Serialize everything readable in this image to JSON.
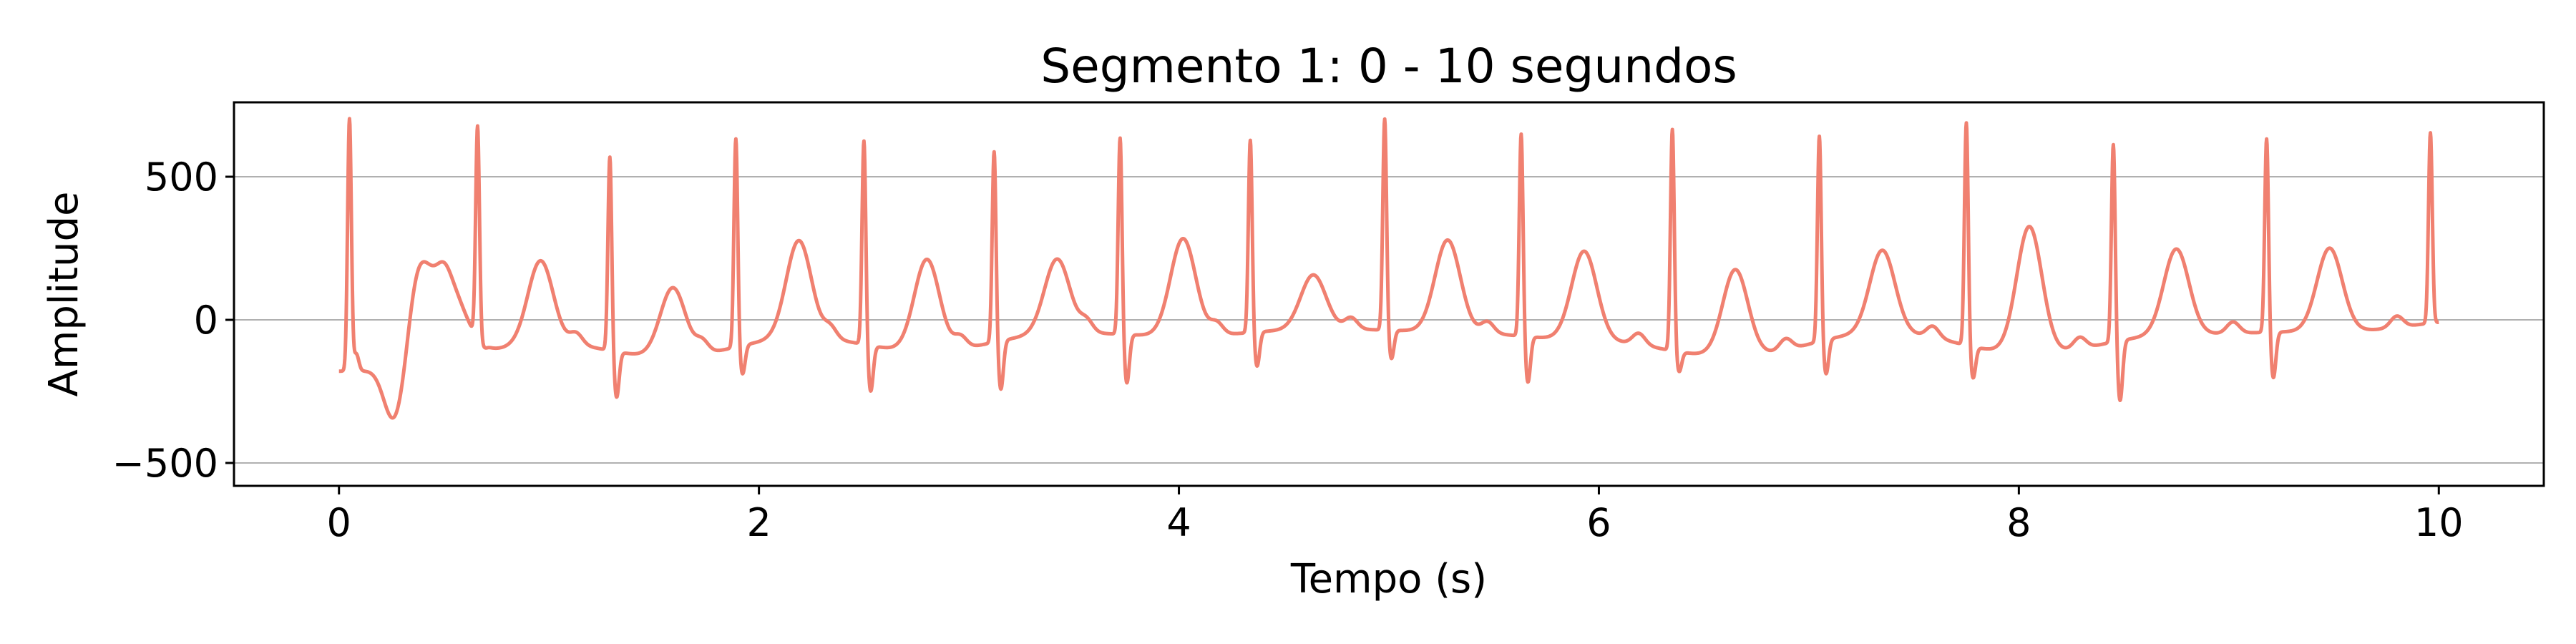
{
  "chart_data": {
    "type": "line",
    "title": "Segmento 1: 0 - 10 segundos",
    "xlabel": "Tempo (s)",
    "ylabel": "Amplitude",
    "xlim": [
      -0.5,
      10.5
    ],
    "ylim": [
      -580,
      760
    ],
    "xticks": [
      0,
      2,
      4,
      6,
      8,
      10
    ],
    "yticks": [
      -500,
      0,
      500
    ],
    "ytick_labels": [
      "−500",
      "0",
      "500"
    ],
    "grid": "horizontal",
    "line_color": "#f08070",
    "r_peaks": [
      0.05,
      0.66,
      1.29,
      1.89,
      2.5,
      3.12,
      3.72,
      4.34,
      4.98,
      5.63,
      6.35,
      7.05,
      7.75,
      8.45,
      9.18,
      9.96
    ],
    "r_amplitudes": [
      700,
      670,
      540,
      680,
      595,
      630,
      630,
      645,
      700,
      640,
      645,
      680,
      660,
      645,
      640,
      665
    ],
    "s_amplitudes": [
      -120,
      -80,
      -300,
      -150,
      -280,
      -210,
      -230,
      -150,
      -140,
      -230,
      -200,
      -160,
      -230,
      -260,
      -200,
      0
    ],
    "t_amplitudes": [
      170,
      220,
      100,
      290,
      200,
      220,
      280,
      160,
      280,
      240,
      170,
      250,
      320,
      250,
      250,
      0
    ],
    "baseline": [
      -180,
      -70,
      -140,
      -50,
      -120,
      -40,
      -60,
      -30,
      -40,
      -70,
      -130,
      -40,
      -120,
      -50,
      -40,
      0
    ]
  }
}
